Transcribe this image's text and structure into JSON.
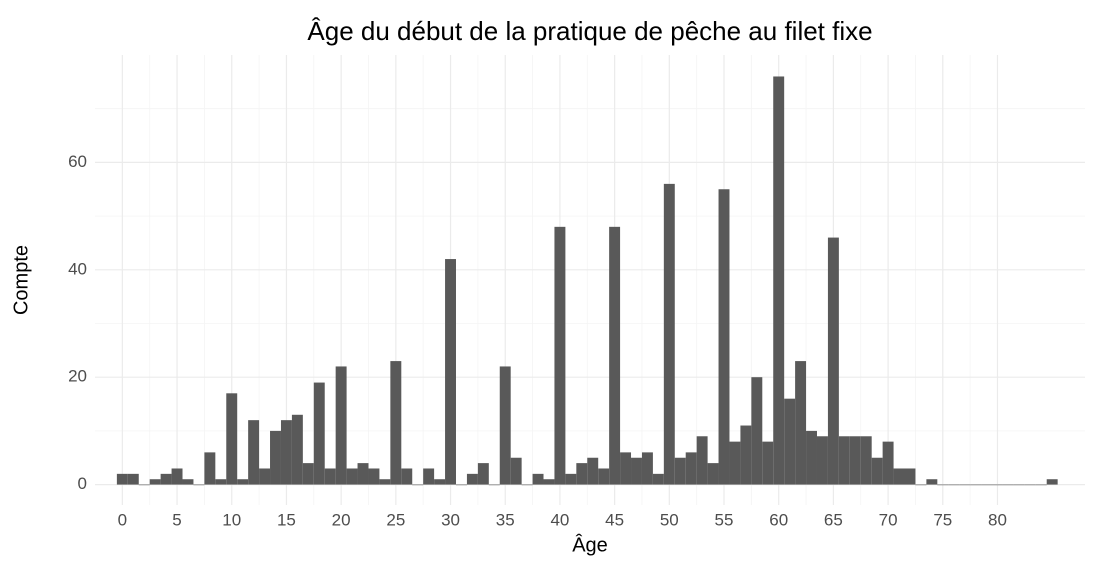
{
  "chart_data": {
    "type": "histogram",
    "title": "Âge du début de la pratique de pêche au filet fixe",
    "x_label": "Âge",
    "y_label": "Compte",
    "bins": [
      -0.5,
      0.5,
      1.5,
      2.5,
      3.5,
      4.5,
      5.5,
      6.5,
      7.5,
      8.5,
      9.5,
      10.5,
      11.5,
      12.5,
      13.5,
      14.5,
      15.5,
      16.5,
      17.5,
      18.5,
      19.5,
      20.5,
      21.5,
      22.5,
      23.5,
      24.5,
      25.5,
      26.5,
      27.5,
      28.5,
      29.5,
      30.5,
      31.5,
      32.5,
      33.5,
      34.5,
      35.5,
      36.5,
      37.5,
      38.5,
      39.5,
      40.5,
      41.5,
      42.5,
      43.5,
      44.5,
      45.5,
      46.5,
      47.5,
      48.5,
      49.5,
      50.5,
      51.5,
      52.5,
      53.5,
      54.5,
      55.5,
      56.5,
      57.5,
      58.5,
      59.5,
      60.5,
      61.5,
      62.5,
      63.5,
      64.5,
      65.5,
      66.5,
      67.5,
      68.5,
      69.5,
      70.5,
      71.5,
      72.5,
      73.5,
      74.5,
      75.5,
      76.5,
      77.5,
      78.5,
      79.5,
      80.5,
      81.5,
      82.5,
      83.5,
      84.5,
      85.5
    ],
    "values": [
      2,
      2,
      0,
      1,
      2,
      3,
      1,
      0,
      6,
      1,
      17,
      1,
      12,
      3,
      10,
      12,
      13,
      4,
      19,
      3,
      22,
      3,
      4,
      3,
      1,
      23,
      3,
      0,
      3,
      1,
      42,
      0,
      2,
      4,
      0,
      22,
      5,
      0,
      2,
      1,
      48,
      2,
      4,
      5,
      3,
      48,
      6,
      5,
      6,
      2,
      56,
      5,
      6,
      9,
      4,
      55,
      8,
      11,
      20,
      8,
      76,
      16,
      23,
      10,
      9,
      46,
      9,
      9,
      9,
      5,
      8,
      3,
      3,
      0,
      1,
      0,
      0,
      0,
      0,
      0,
      0,
      0,
      0,
      0,
      0,
      1
    ],
    "color": "#595959",
    "xlim": [
      -2.5,
      88
    ],
    "ylim": [
      -3.8,
      80
    ],
    "xticks": [
      0,
      5,
      10,
      15,
      20,
      25,
      30,
      35,
      40,
      45,
      50,
      55,
      60,
      65,
      70,
      75,
      80
    ],
    "yticks": [
      0,
      20,
      40,
      60
    ],
    "grid": true
  }
}
